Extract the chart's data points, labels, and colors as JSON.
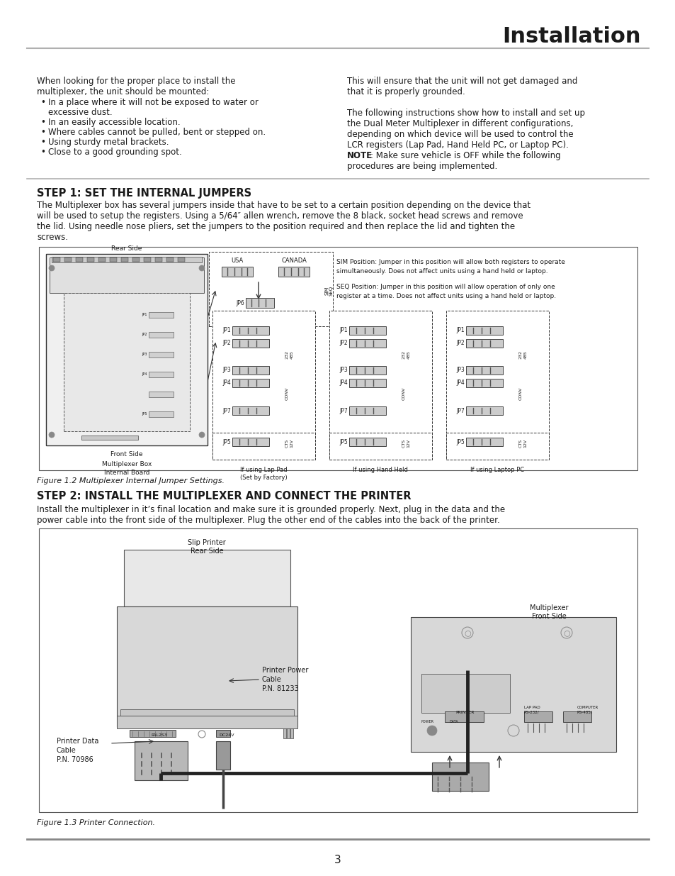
{
  "title": "Installation",
  "page_number": "3",
  "bg": "#ffffff",
  "text_color": "#1a1a1a",
  "line_color": "#aaaaaa",
  "left_col_text": [
    "When looking for the proper place to install the",
    "multiplexer, the unit should be mounted:"
  ],
  "bullet_items": [
    "In a place where it will not be exposed to water or",
    "excessive dust.",
    "In an easily accessible location.",
    "Where cables cannot be pulled, bent or stepped on.",
    "Using sturdy metal brackets.",
    "Close to a good grounding spot."
  ],
  "right_col_para1": [
    "This will ensure that the unit will not get damaged and",
    "that it is properly grounded."
  ],
  "right_col_para2": [
    "The following instructions show how to install and set up",
    "the Dual Meter Multiplexer in different configurations,",
    "depending on which device will be used to control the",
    "LCR registers (Lap Pad, Hand Held PC, or Laptop PC)."
  ],
  "right_col_note": "NOTE: Make sure vehicle is OFF while the following",
  "right_col_note2": "procedures are being implemented.",
  "step1_title": "STEP 1: SET THE INTERNAL JUMPERS",
  "step1_body": [
    "The Multiplexer box has several jumpers inside that have to be set to a certain position depending on the device that",
    "will be used to setup the registers. Using a 5/64″ allen wrench, remove the 8 black, socket head screws and remove",
    "the lid. Using needle nose pliers, set the jumpers to the position required and then replace the lid and tighten the",
    "screws."
  ],
  "fig1_caption": "Figure 1.2 Multiplexer Internal Jumper Settings.",
  "sim_text1": "SIM Position: Jumper in this position will allow both registers to operate",
  "sim_text2": "simultaneously. Does not affect units using a hand held or laptop.",
  "seq_text1": "SEQ Position: Jumper in this position will allow operation of only one",
  "seq_text2": "register at a time. Does not affect units using a hand held or laptop.",
  "cfg_labels": [
    "If using Lap Pad\n(Set by Factory)",
    "If using Hand Held",
    "If using Laptop PC"
  ],
  "jp_names_col1": [
    "JP1",
    "JP2",
    "JP3",
    "JP4",
    "JP7",
    "JP5"
  ],
  "jp_names_col2": [
    "JP1",
    "JP2",
    "JP3",
    "JP4",
    "JP7",
    "JP5"
  ],
  "jp_names_col3": [
    "JP1",
    "JP2",
    "JP3",
    "JP4",
    "JP7",
    "JP5"
  ],
  "step2_title": "STEP 2: INSTALL THE MULTIPLEXER AND CONNECT THE PRINTER",
  "step2_body": [
    "Install the multiplexer in it’s final location and make sure it is grounded properly. Next, plug in the data and the",
    "power cable into the front side of the multiplexer. Plug the other end of the cables into the back of the printer."
  ],
  "fig2_caption": "Figure 1.3 Printer Connection.",
  "label_slip_printer": "Slip Printer",
  "label_rear_side": "Rear Side",
  "label_mux": "Multiplexer",
  "label_front_side": "Front Side",
  "label_data_cable": "Printer Data\nCable\nP.N. 70986",
  "label_power_cable": "Printer Power\nCable\nP.N. 81233",
  "fs_body": 8.5,
  "fs_title": 22,
  "fs_step": 10.5,
  "fs_caption": 8,
  "fs_small": 6.5
}
